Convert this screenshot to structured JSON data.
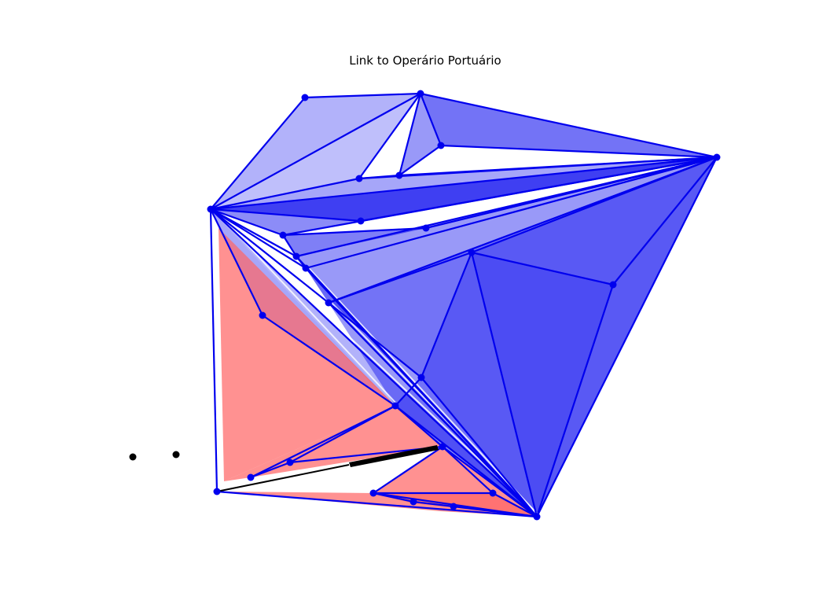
{
  "title": "Link to Operário Portuário",
  "colors": {
    "blue": "#0000ee",
    "red": "#ff6666",
    "black": "#000000",
    "white": "#ffffff"
  }
}
